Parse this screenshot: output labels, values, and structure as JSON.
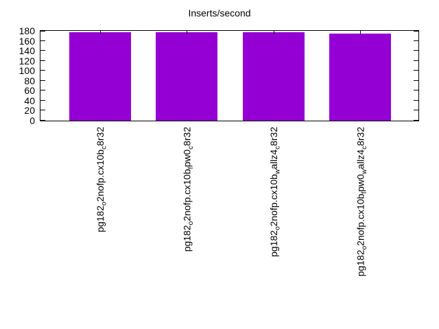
{
  "title": "Inserts/second",
  "chart_data": {
    "type": "bar",
    "title": "Inserts/second",
    "categories": [
      "pg182_o2nofp.cx10b_c8r32",
      "pg182_o2nofp.cx10b_fpw0_c8r32",
      "pg182_o2nofp.cx10b_wallz4_c8r32",
      "pg182_o2nofp.cx10b_fpw0_wallz4_c8r32"
    ],
    "category_note": "labels drawn rotated 90deg; _x denotes a subscripted character as rendered",
    "values": [
      177,
      177,
      177,
      174
    ],
    "xlabel": "",
    "ylabel": "",
    "ylim": [
      0,
      180
    ],
    "yticks": [
      0,
      20,
      40,
      60,
      80,
      100,
      120,
      140,
      160,
      180
    ],
    "bar_color": "#9400d3",
    "frame_color": "#000000",
    "background_color": "#ffffff",
    "grid": false,
    "legend": "none"
  }
}
